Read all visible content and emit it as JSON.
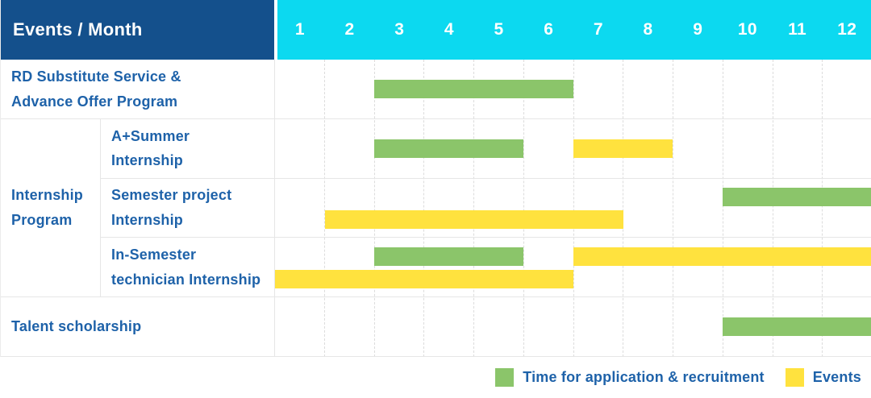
{
  "header": {
    "title": "Events / Month"
  },
  "colors": {
    "header_bg": "#14508C",
    "months_bg": "#0CD9F0",
    "label_text": "#1E62A9",
    "recruitment_green": "#8BC56A",
    "events_yellow": "#FFE23E",
    "grid_line": "#E6E6E6"
  },
  "chart_data": {
    "type": "bar",
    "subtype": "gantt-timeline",
    "title": "Events / Month",
    "x_axis": {
      "label": "Month",
      "ticks": [
        "1",
        "2",
        "3",
        "4",
        "5",
        "6",
        "7",
        "8",
        "9",
        "10",
        "11",
        "12"
      ],
      "range": [
        1,
        12
      ],
      "grid": "dashed-vertical"
    },
    "legend_position": "bottom-right",
    "row_groups": [
      {
        "group_label": "",
        "group_label_lines": [],
        "rows": [
          {
            "label": "RD Substitute Service & Advance Offer Program",
            "label_lines": [
              "RD Substitute Service &",
              "Advance Offer Program"
            ],
            "lanes": [
              [
                {
                  "series": "recruitment",
                  "start_month": 3,
                  "end_month": 6
                }
              ]
            ]
          }
        ]
      },
      {
        "group_label": "Internship Program",
        "group_label_lines": [
          "Internship",
          "Program"
        ],
        "rows": [
          {
            "label": "A+Summer Internship",
            "label_lines": [
              "A+Summer",
              "Internship"
            ],
            "lanes": [
              [
                {
                  "series": "recruitment",
                  "start_month": 3,
                  "end_month": 5
                },
                {
                  "series": "events",
                  "start_month": 7,
                  "end_month": 8
                }
              ]
            ]
          },
          {
            "label": "Semester project Internship",
            "label_lines": [
              "Semester project",
              "Internship"
            ],
            "lanes": [
              [
                {
                  "series": "recruitment",
                  "start_month": 10,
                  "end_month": 12
                }
              ],
              [
                {
                  "series": "events",
                  "start_month": 2,
                  "end_month": 7
                }
              ]
            ]
          },
          {
            "label": "In-Semester technician Internship",
            "label_lines": [
              "In-Semester",
              "technician Internship"
            ],
            "lanes": [
              [
                {
                  "series": "recruitment",
                  "start_month": 3,
                  "end_month": 5
                },
                {
                  "series": "events",
                  "start_month": 7,
                  "end_month": 12
                }
              ],
              [
                {
                  "series": "events",
                  "start_month": 1,
                  "end_month": 6
                }
              ]
            ]
          }
        ]
      },
      {
        "group_label": "",
        "group_label_lines": [],
        "rows": [
          {
            "label": "Talent scholarship",
            "label_lines": [
              "Talent scholarship"
            ],
            "lanes": [
              [
                {
                  "series": "recruitment",
                  "start_month": 10,
                  "end_month": 12
                }
              ]
            ]
          }
        ]
      }
    ],
    "legend": [
      {
        "series": "recruitment",
        "label": "Time for application & recruitment"
      },
      {
        "series": "events",
        "label": "Events"
      }
    ]
  }
}
